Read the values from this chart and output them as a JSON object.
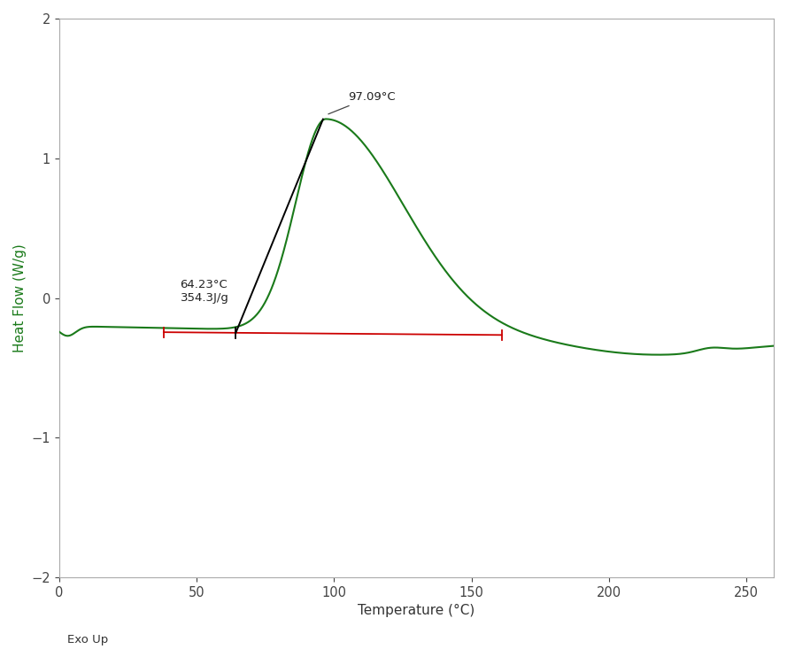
{
  "title": "",
  "xlabel": "Temperature (°C)",
  "ylabel": "Heat Flow (W/g)",
  "xlim": [
    0,
    260
  ],
  "ylim": [
    -2,
    2
  ],
  "xticks": [
    0,
    50,
    100,
    150,
    200,
    250
  ],
  "yticks": [
    -2,
    -1,
    0,
    1,
    2
  ],
  "background_color": "#ffffff",
  "curve_color": "#1a7a1a",
  "baseline_color": "#cc0000",
  "tangent_color": "#000000",
  "peak_temp": 97.09,
  "peak_hf": 1.3,
  "onset_temp": 64.23,
  "onset_label": "64.23°C\n354.3J/g",
  "peak_label": "97.09°C",
  "baseline_x_start": 38,
  "baseline_x_end": 161,
  "exo_up_label": "Exo Up",
  "tangent_x1": 64.23,
  "tangent_y1": -0.25,
  "tangent_x2": 96.0,
  "tangent_y2": 1.28
}
